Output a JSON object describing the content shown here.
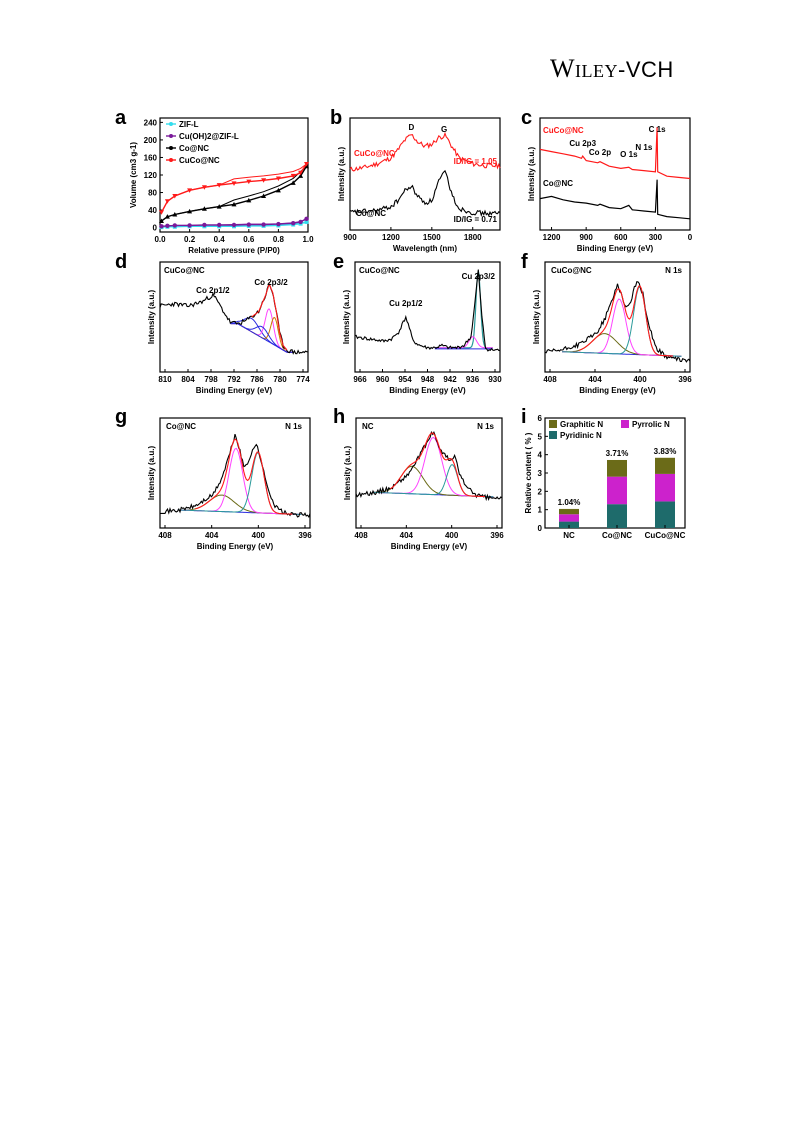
{
  "header": {
    "logo_main": "Wiley",
    "logo_sep": "-",
    "logo_sub": "VCH"
  },
  "panels": {
    "a": {
      "letter": "a"
    },
    "b": {
      "letter": "b"
    },
    "c": {
      "letter": "c"
    },
    "d": {
      "letter": "d",
      "sample": "CuCo@NC"
    },
    "e": {
      "letter": "e",
      "sample": "CuCo@NC"
    },
    "f": {
      "letter": "f",
      "sample": "CuCo@NC",
      "region": "N 1s"
    },
    "g": {
      "letter": "g",
      "sample": "Co@NC",
      "region": "N 1s"
    },
    "h": {
      "letter": "h",
      "sample": "NC",
      "region": "N 1s"
    },
    "i": {
      "letter": "i"
    }
  },
  "colors": {
    "red": "#ff1a1a",
    "black": "#000000",
    "cyan": "#33ddee",
    "purple": "#7a1a9a",
    "olive": "#6b6b18",
    "magenta": "#cc22cc",
    "teal": "#1e6b6b",
    "pink": "#ff44ff",
    "blue": "#2a2adf",
    "orange": "#cc7a00",
    "green": "#3aa83a",
    "teal_peak": "#2a9a9a"
  },
  "chart_data": [
    {
      "panel": "a",
      "type": "line",
      "xlabel": "Relative pressure (P/P0)",
      "ylabel": "Volume (cm3 g-1)",
      "xlim": [
        0,
        1.0
      ],
      "ylim": [
        -10,
        250
      ],
      "xticks": [
        "0.0",
        "0.2",
        "0.4",
        "0.6",
        "0.8",
        "1.0"
      ],
      "yticks": [
        "0",
        "40",
        "80",
        "120",
        "160",
        "200",
        "240"
      ],
      "legend_position": "top-left",
      "series": [
        {
          "name": "ZIF-L",
          "color": "#33ddee",
          "x": [
            0.01,
            0.05,
            0.1,
            0.2,
            0.3,
            0.4,
            0.5,
            0.6,
            0.7,
            0.8,
            0.9,
            0.95,
            0.99
          ],
          "y": [
            1,
            2,
            2,
            3,
            3,
            3,
            3,
            4,
            4,
            5,
            7,
            9,
            13
          ]
        },
        {
          "name": "Cu(OH)2@ZIF-L",
          "color": "#7a1a9a",
          "x": [
            0.01,
            0.05,
            0.1,
            0.2,
            0.3,
            0.4,
            0.5,
            0.6,
            0.7,
            0.8,
            0.9,
            0.95,
            0.99
          ],
          "y": [
            3,
            4,
            5,
            5,
            6,
            6,
            6,
            7,
            7,
            8,
            10,
            13,
            20
          ]
        },
        {
          "name": "Co@NC",
          "color": "#000000",
          "x": [
            0.01,
            0.05,
            0.1,
            0.2,
            0.3,
            0.4,
            0.5,
            0.6,
            0.7,
            0.8,
            0.9,
            0.95,
            0.99
          ],
          "y": [
            15,
            25,
            30,
            37,
            43,
            48,
            53,
            62,
            72,
            85,
            102,
            118,
            140
          ]
        },
        {
          "name": "CuCo@NC",
          "color": "#ff1a1a",
          "x": [
            0.01,
            0.05,
            0.1,
            0.2,
            0.3,
            0.4,
            0.5,
            0.6,
            0.7,
            0.8,
            0.9,
            0.95,
            0.99
          ],
          "y": [
            35,
            60,
            72,
            85,
            92,
            97,
            101,
            105,
            108,
            112,
            118,
            125,
            145
          ]
        }
      ]
    },
    {
      "panel": "b",
      "type": "line",
      "xlabel": "Wavelength (nm)",
      "ylabel": "Intensity (a.u.)",
      "xlim": [
        900,
        2000
      ],
      "xticks": [
        "900",
        "1200",
        "1500",
        "1800"
      ],
      "peak_labels": [
        "D",
        "G"
      ],
      "series": [
        {
          "name": "CuCo@NC",
          "color": "#ff1a1a",
          "ratio_label": "ID/IG = 1.05",
          "x": [
            900,
            1000,
            1100,
            1200,
            1250,
            1300,
            1350,
            1400,
            1450,
            1500,
            1550,
            1600,
            1650,
            1700,
            1800,
            1900,
            2000
          ],
          "y": [
            0.62,
            0.64,
            0.68,
            0.74,
            0.82,
            0.92,
            0.98,
            0.9,
            0.86,
            0.88,
            0.95,
            0.97,
            0.85,
            0.74,
            0.68,
            0.66,
            0.66
          ]
        },
        {
          "name": "Co@NC",
          "color": "#000000",
          "ratio_label": "ID/IG = 0.71",
          "x": [
            900,
            1000,
            1100,
            1200,
            1250,
            1300,
            1350,
            1400,
            1450,
            1500,
            1550,
            1600,
            1650,
            1700,
            1800,
            1900,
            2000
          ],
          "y": [
            0.18,
            0.19,
            0.2,
            0.24,
            0.3,
            0.4,
            0.45,
            0.34,
            0.28,
            0.3,
            0.5,
            0.6,
            0.35,
            0.22,
            0.18,
            0.17,
            0.17
          ]
        }
      ]
    },
    {
      "panel": "c",
      "type": "line",
      "xlabel": "Binding Energy (eV)",
      "ylabel": "Intensity (a.u.)",
      "xlim": [
        1300,
        0
      ],
      "xticks": [
        "1200",
        "900",
        "600",
        "300",
        "0"
      ],
      "peak_labels": [
        "C 1s",
        "Cu 2p3",
        "Co 2p",
        "O 1s",
        "N 1s"
      ],
      "series": [
        {
          "name": "CuCo@NC",
          "color": "#ff1a1a",
          "x": [
            1300,
            1200,
            1100,
            1000,
            940,
            930,
            900,
            800,
            780,
            700,
            600,
            530,
            500,
            400,
            300,
            285,
            280,
            200,
            100,
            0
          ],
          "y": [
            0.72,
            0.7,
            0.68,
            0.66,
            0.64,
            0.66,
            0.62,
            0.6,
            0.61,
            0.57,
            0.55,
            0.56,
            0.54,
            0.53,
            0.52,
            0.92,
            0.52,
            0.48,
            0.47,
            0.46
          ]
        },
        {
          "name": "Co@NC",
          "color": "#000000",
          "x": [
            1300,
            1200,
            1100,
            1000,
            900,
            800,
            780,
            700,
            600,
            530,
            500,
            400,
            300,
            285,
            280,
            200,
            100,
            0
          ],
          "y": [
            0.28,
            0.3,
            0.27,
            0.25,
            0.24,
            0.22,
            0.23,
            0.2,
            0.19,
            0.22,
            0.18,
            0.17,
            0.16,
            0.45,
            0.14,
            0.12,
            0.11,
            0.1
          ]
        }
      ]
    },
    {
      "panel": "d",
      "type": "line",
      "xlabel": "Binding Energy (eV)",
      "ylabel": "Intensity (a.u.)",
      "xlim": [
        812,
        770
      ],
      "xticks": [
        "810",
        "804",
        "798",
        "792",
        "786",
        "780",
        "774"
      ],
      "peak_labels": [
        "Co 2p1/2",
        "Co 2p3/2"
      ],
      "series": [
        {
          "name": "data",
          "color": "#000000",
          "x": [
            812,
            808,
            804,
            800,
            797,
            796,
            794,
            792,
            790,
            788,
            786,
            784,
            782,
            781,
            780,
            779,
            778,
            777,
            776,
            775,
            774,
            772,
            770
          ],
          "y": [
            0.6,
            0.62,
            0.6,
            0.64,
            0.7,
            0.66,
            0.55,
            0.45,
            0.44,
            0.46,
            0.5,
            0.55,
            0.7,
            0.8,
            0.72,
            0.55,
            0.35,
            0.24,
            0.2,
            0.19,
            0.18,
            0.18,
            0.18
          ]
        }
      ]
    },
    {
      "panel": "e",
      "type": "line",
      "xlabel": "Binding Energy (eV)",
      "ylabel": "Intensity (a.u.)",
      "xlim": [
        968,
        928
      ],
      "xticks": [
        "966",
        "960",
        "954",
        "948",
        "942",
        "936",
        "930"
      ],
      "peak_labels": [
        "Cu 2p1/2",
        "Cu 2p3/2"
      ],
      "series": [
        {
          "name": "data",
          "color": "#000000",
          "x": [
            968,
            964,
            960,
            958,
            956,
            954,
            953,
            952,
            950,
            948,
            946,
            944,
            942,
            940,
            938,
            936,
            935,
            934,
            933,
            932,
            931,
            930,
            928
          ],
          "y": [
            0.32,
            0.3,
            0.28,
            0.3,
            0.36,
            0.5,
            0.4,
            0.28,
            0.24,
            0.22,
            0.22,
            0.24,
            0.22,
            0.22,
            0.24,
            0.32,
            0.6,
            0.92,
            0.5,
            0.22,
            0.2,
            0.2,
            0.2
          ]
        }
      ]
    },
    {
      "panel": "f",
      "type": "line",
      "xlabel": "Binding Energy (eV)",
      "xlim": [
        410,
        393
      ],
      "xticks": [
        "408",
        "404",
        "400",
        "396"
      ],
      "series": [
        {
          "name": "data",
          "color": "#000000",
          "x": [
            410,
            408,
            406,
            404,
            403,
            402,
            401.5,
            401,
            400.5,
            400,
            399.5,
            399,
            398.5,
            398,
            397,
            396,
            395,
            394,
            393
          ],
          "y": [
            0.18,
            0.2,
            0.25,
            0.35,
            0.48,
            0.68,
            0.8,
            0.7,
            0.58,
            0.62,
            0.78,
            0.82,
            0.7,
            0.48,
            0.22,
            0.15,
            0.12,
            0.11,
            0.1
          ]
        }
      ]
    },
    {
      "panel": "g",
      "type": "line",
      "xlabel": "Binding Energy (eV)",
      "xlim": [
        410,
        393
      ],
      "xticks": [
        "408",
        "404",
        "400",
        "396"
      ],
      "series": [
        {
          "name": "data",
          "color": "#000000",
          "x": [
            410,
            408,
            406,
            404,
            403,
            402,
            401.5,
            401,
            400.5,
            400,
            399.5,
            399,
            398.5,
            398,
            397,
            396,
            395,
            394,
            393
          ],
          "y": [
            0.15,
            0.16,
            0.2,
            0.3,
            0.45,
            0.7,
            0.85,
            0.72,
            0.55,
            0.6,
            0.72,
            0.75,
            0.6,
            0.42,
            0.2,
            0.14,
            0.12,
            0.12,
            0.12
          ]
        }
      ]
    },
    {
      "panel": "h",
      "type": "line",
      "xlabel": "Binding Energy (eV)",
      "xlim": [
        410,
        393
      ],
      "xticks": [
        "408",
        "404",
        "400",
        "396"
      ],
      "series": [
        {
          "name": "data",
          "color": "#000000",
          "x": [
            410,
            408,
            406,
            404,
            403,
            402,
            401,
            400.5,
            400,
            399,
            398.5,
            398,
            397,
            396,
            395,
            394,
            393
          ],
          "y": [
            0.3,
            0.32,
            0.36,
            0.48,
            0.6,
            0.74,
            0.88,
            0.76,
            0.7,
            0.6,
            0.66,
            0.5,
            0.36,
            0.3,
            0.28,
            0.27,
            0.27
          ]
        }
      ]
    },
    {
      "panel": "i",
      "type": "bar",
      "ylabel": "Relative content ( % )",
      "ylim": [
        0,
        6
      ],
      "yticks": [
        "0",
        "1",
        "2",
        "3",
        "4",
        "5",
        "6"
      ],
      "categories": [
        "NC",
        "Co@NC",
        "CuCo@NC"
      ],
      "totals_labels": [
        "1.04%",
        "3.71%",
        "3.83%"
      ],
      "legend_position": "top-left",
      "series": [
        {
          "name": "Pyridinic N",
          "color": "#1e6b6b",
          "values": [
            0.35,
            1.3,
            1.45
          ]
        },
        {
          "name": "Pyrrolic N",
          "color": "#cc22cc",
          "values": [
            0.4,
            1.5,
            1.5
          ]
        },
        {
          "name": "Graphitic N",
          "color": "#6b6b18",
          "values": [
            0.29,
            0.91,
            0.88
          ]
        }
      ]
    }
  ]
}
